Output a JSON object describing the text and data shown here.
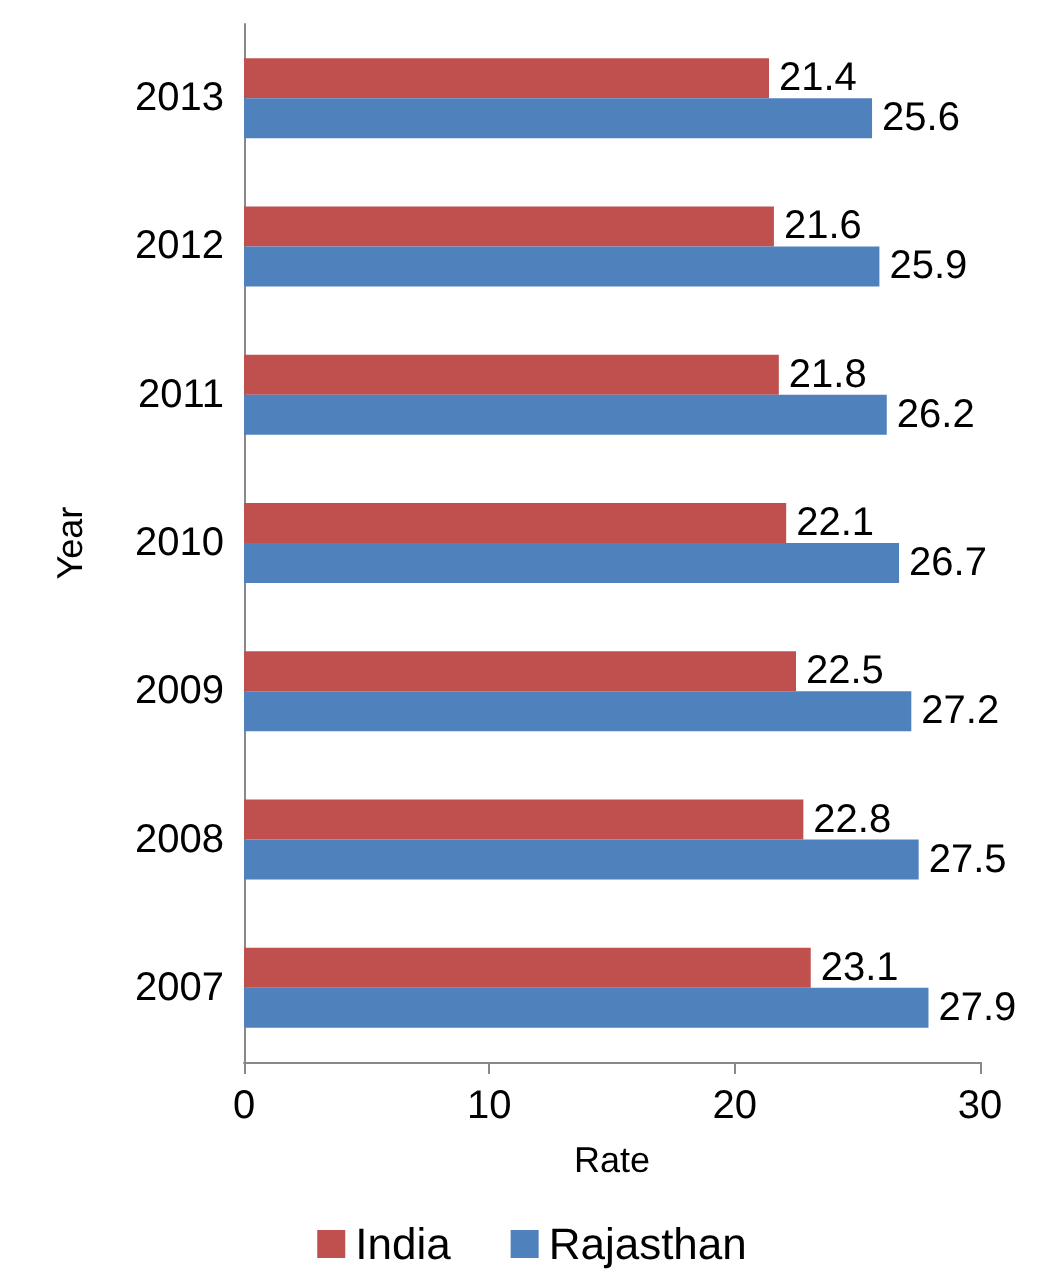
{
  "chart_data": {
    "type": "bar",
    "orientation": "horizontal",
    "xlabel": "Rate",
    "ylabel": "Year",
    "categories": [
      "2013",
      "2012",
      "2011",
      "2010",
      "2009",
      "2008",
      "2007"
    ],
    "series": [
      {
        "name": "India",
        "color": "#c0504d",
        "values": [
          21.4,
          21.6,
          21.8,
          22.1,
          22.5,
          22.8,
          23.1
        ]
      },
      {
        "name": "Rajasthan",
        "color": "#4f81bd",
        "values": [
          25.6,
          25.9,
          26.2,
          26.7,
          27.2,
          27.5,
          27.9
        ]
      }
    ],
    "xlim": [
      0,
      30
    ],
    "xticks": [
      0,
      10,
      20,
      30
    ],
    "grid": false,
    "legend": "bottom",
    "data_labels": true
  }
}
